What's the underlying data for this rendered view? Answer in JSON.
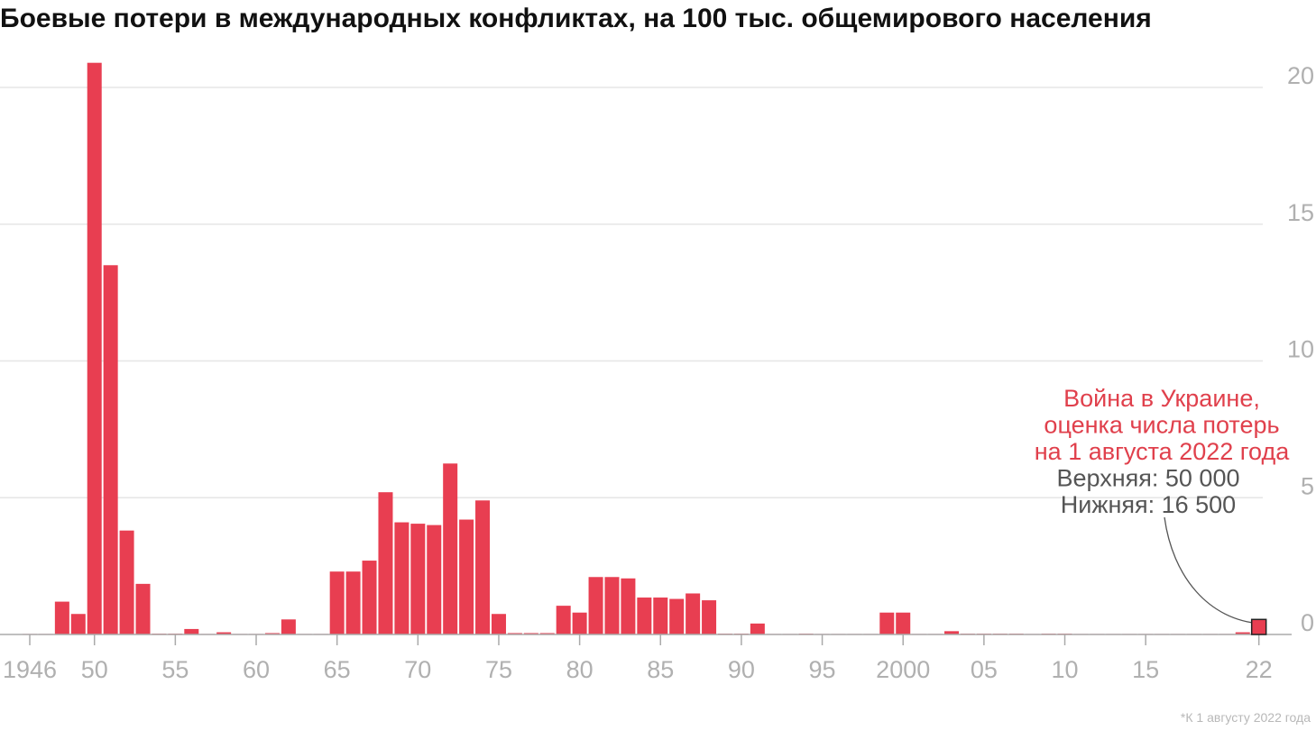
{
  "chart_data": {
    "type": "bar",
    "title": "Боевые потери в международных конфликтах, на 100 тыс. общемирового населения",
    "xlabel": "",
    "ylabel": "",
    "ylim": [
      0,
      20
    ],
    "y_ticks": [
      "0",
      "5",
      "10",
      "15",
      "20"
    ],
    "y_tick_values": [
      0,
      5,
      10,
      15,
      20
    ],
    "x_ticks": [
      {
        "year": 1946,
        "label": "1946"
      },
      {
        "year": 1950,
        "label": "50"
      },
      {
        "year": 1955,
        "label": "55"
      },
      {
        "year": 1960,
        "label": "60"
      },
      {
        "year": 1965,
        "label": "65"
      },
      {
        "year": 1970,
        "label": "70"
      },
      {
        "year": 1975,
        "label": "75"
      },
      {
        "year": 1980,
        "label": "80"
      },
      {
        "year": 1985,
        "label": "85"
      },
      {
        "year": 1990,
        "label": "90"
      },
      {
        "year": 1995,
        "label": "95"
      },
      {
        "year": 2000,
        "label": "2000"
      },
      {
        "year": 2005,
        "label": "05"
      },
      {
        "year": 2010,
        "label": "10"
      },
      {
        "year": 2015,
        "label": "15"
      },
      {
        "year": 2022,
        "label": "22"
      }
    ],
    "years": [
      1946,
      1947,
      1948,
      1949,
      1950,
      1951,
      1952,
      1953,
      1954,
      1955,
      1956,
      1957,
      1958,
      1959,
      1960,
      1961,
      1962,
      1963,
      1964,
      1965,
      1966,
      1967,
      1968,
      1969,
      1970,
      1971,
      1972,
      1973,
      1974,
      1975,
      1976,
      1977,
      1978,
      1979,
      1980,
      1981,
      1982,
      1983,
      1984,
      1985,
      1986,
      1987,
      1988,
      1989,
      1990,
      1991,
      1992,
      1993,
      1994,
      1995,
      1996,
      1997,
      1998,
      1999,
      2000,
      2001,
      2002,
      2003,
      2004,
      2005,
      2006,
      2007,
      2008,
      2009,
      2010,
      2011,
      2012,
      2013,
      2014,
      2015,
      2016,
      2017,
      2018,
      2019,
      2020,
      2021,
      2022
    ],
    "series": [
      {
        "name": "Боевые потери",
        "color": "#e83e51",
        "values": [
          0.02,
          0.02,
          1.2,
          0.75,
          20.9,
          13.5,
          3.8,
          1.85,
          0.03,
          0.03,
          0.2,
          0.02,
          0.08,
          0.02,
          0.02,
          0.05,
          0.55,
          0.02,
          0.02,
          2.3,
          2.3,
          2.7,
          5.2,
          4.1,
          4.05,
          4.0,
          6.25,
          4.2,
          4.9,
          0.75,
          0.05,
          0.05,
          0.05,
          1.05,
          0.8,
          2.1,
          2.1,
          2.05,
          1.35,
          1.35,
          1.3,
          1.5,
          1.25,
          0.03,
          0.03,
          0.4,
          0.02,
          0.02,
          0.03,
          0.02,
          0.02,
          0.02,
          0.02,
          0.8,
          0.8,
          0.02,
          0.02,
          0.12,
          0.03,
          0.03,
          0.03,
          0.03,
          0.02,
          0.03,
          0.03,
          0.02,
          0.02,
          0.02,
          0.02,
          0.02,
          0.02,
          0.02,
          0.02,
          0.02,
          0.02,
          0.08,
          0.55
        ]
      }
    ],
    "annotation": {
      "year": 2022,
      "lines_red": [
        "Война в Украине,",
        "оценка числа потерь",
        "на 1 августа 2022 года"
      ],
      "lines_gray": [
        "Верхняя: 50 000",
        "Нижняя: 16 500"
      ],
      "color_red": "#e0404c",
      "color_gray": "#555555"
    },
    "footnote": "*К 1 августу 2022 года",
    "colors": {
      "grid": "#e6e6e6",
      "axis": "#aaaaaa",
      "tick_text": "#b0b0b0",
      "marker_outline": "#222222"
    }
  }
}
